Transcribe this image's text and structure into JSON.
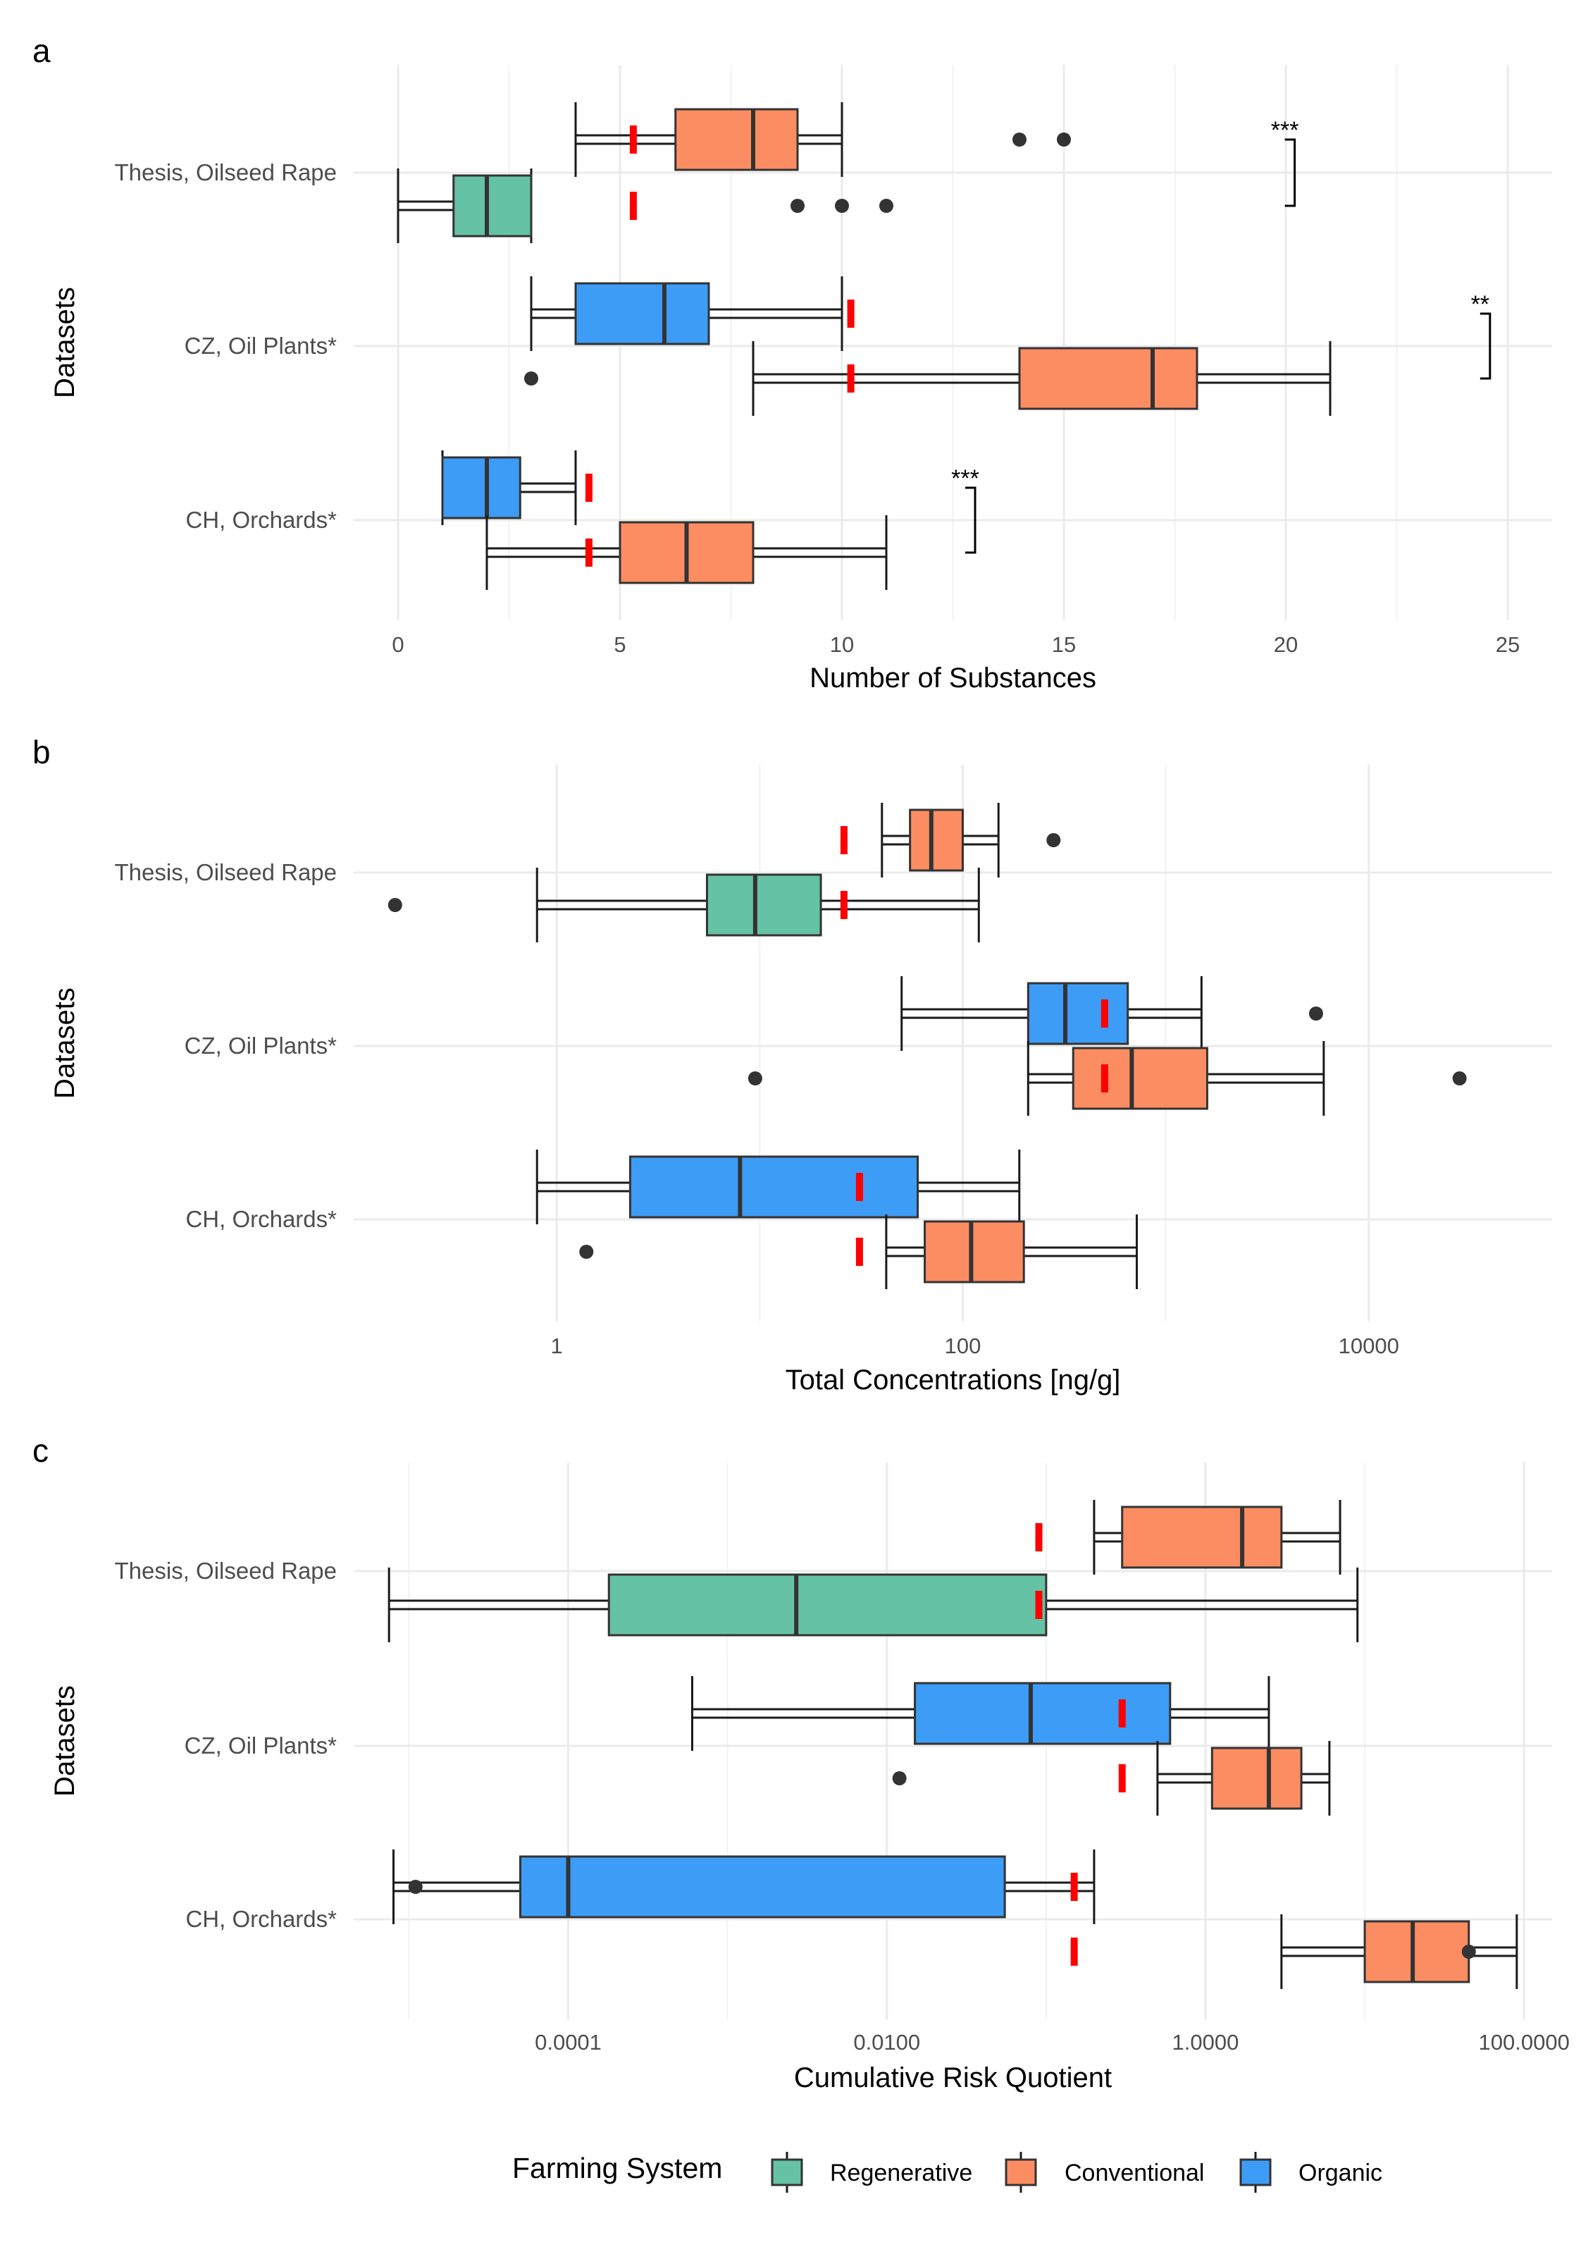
{
  "colors": {
    "Regenerative": "#66c2a5",
    "Conventional": "#fc8d62",
    "Organic": "#3d9cf5",
    "mean_marker": "#ff0000",
    "outlier": "#333333"
  },
  "legend": {
    "title": "Farming System",
    "items": [
      "Regenerative",
      "Conventional",
      "Organic"
    ]
  },
  "chart_data": [
    {
      "panel": "a",
      "type": "boxplot",
      "orientation": "horizontal",
      "xlabel": "Number of Substances",
      "ylabel": "Datasets",
      "xscale": "linear",
      "xlim": [
        -1,
        26
      ],
      "xticks": [
        0,
        5,
        10,
        15,
        20,
        25
      ],
      "xtick_labels": [
        "0",
        "5",
        "10",
        "15",
        "20",
        "25"
      ],
      "categories": [
        "Thesis, Oilseed Rape",
        "CZ, Oil Plants*",
        "CH, Orchards*"
      ],
      "groups": [
        {
          "category": "Thesis, Oilseed Rape",
          "system": "Conventional",
          "min": 4,
          "q1": 6.25,
          "median": 8,
          "q3": 9,
          "max": 10,
          "mean": 5.3,
          "outliers": [
            14,
            15
          ]
        },
        {
          "category": "Thesis, Oilseed Rape",
          "system": "Regenerative",
          "min": 0,
          "q1": 1.25,
          "median": 2,
          "q3": 3,
          "max": 3,
          "mean": 5.3,
          "outliers": [
            9,
            10,
            11
          ]
        },
        {
          "category": "CZ, Oil Plants*",
          "system": "Organic",
          "min": 3,
          "q1": 4,
          "median": 6,
          "q3": 7,
          "max": 10,
          "mean": 10.2,
          "outliers": []
        },
        {
          "category": "CZ, Oil Plants*",
          "system": "Conventional",
          "min": 8,
          "q1": 14,
          "median": 17,
          "q3": 18,
          "max": 21,
          "mean": 10.2,
          "outliers": [
            3
          ]
        },
        {
          "category": "CH, Orchards*",
          "system": "Organic",
          "min": 1,
          "q1": 1,
          "median": 2,
          "q3": 2.75,
          "max": 4,
          "mean": 4.3,
          "outliers": []
        },
        {
          "category": "CH, Orchards*",
          "system": "Conventional",
          "min": 2,
          "q1": 5,
          "median": 6.5,
          "q3": 8,
          "max": 11,
          "mean": 4.3,
          "outliers": []
        }
      ],
      "significance": [
        {
          "category": "Thesis, Oilseed Rape",
          "label": "***",
          "x": 20.2
        },
        {
          "category": "CZ, Oil Plants*",
          "label": "**",
          "x": 24.6
        },
        {
          "category": "CH, Orchards*",
          "label": "***",
          "x": 13
        }
      ]
    },
    {
      "panel": "b",
      "type": "boxplot",
      "orientation": "horizontal",
      "xlabel": "Total Concentrations [ng/g]",
      "ylabel": "Datasets",
      "xscale": "log10",
      "xlim": [
        0.1,
        80000
      ],
      "xticks": [
        1,
        100,
        10000
      ],
      "xtick_labels": [
        "1",
        "100",
        "10000"
      ],
      "categories": [
        "Thesis, Oilseed Rape",
        "CZ, Oil Plants*",
        "CH, Orchards*"
      ],
      "groups": [
        {
          "category": "Thesis, Oilseed Rape",
          "system": "Conventional",
          "min": 40,
          "q1": 55,
          "median": 70,
          "q3": 100,
          "max": 150,
          "mean": 26,
          "outliers": [
            280
          ]
        },
        {
          "category": "Thesis, Oilseed Rape",
          "system": "Regenerative",
          "min": 0.8,
          "q1": 5.5,
          "median": 9.5,
          "q3": 20,
          "max": 120,
          "mean": 26,
          "outliers": [
            0.16
          ]
        },
        {
          "category": "CZ, Oil Plants*",
          "system": "Organic",
          "min": 50,
          "q1": 210,
          "median": 320,
          "q3": 650,
          "max": 1500,
          "mean": 500,
          "outliers": [
            5500
          ]
        },
        {
          "category": "CZ, Oil Plants*",
          "system": "Conventional",
          "min": 210,
          "q1": 350,
          "median": 680,
          "q3": 1600,
          "max": 6000,
          "mean": 500,
          "outliers": [
            9.5,
            28000
          ]
        },
        {
          "category": "CH, Orchards*",
          "system": "Organic",
          "min": 0.8,
          "q1": 2.3,
          "median": 8,
          "q3": 60,
          "max": 190,
          "mean": 31,
          "outliers": []
        },
        {
          "category": "CH, Orchards*",
          "system": "Conventional",
          "min": 42,
          "q1": 65,
          "median": 110,
          "q3": 200,
          "max": 720,
          "mean": 31,
          "outliers": [
            1.4
          ]
        }
      ]
    },
    {
      "panel": "c",
      "type": "boxplot",
      "orientation": "horizontal",
      "xlabel": "Cumulative Risk Quotient",
      "ylabel": "Datasets",
      "xscale": "log10",
      "xlim": [
        4.5e-06,
        150
      ],
      "xticks": [
        0.0001,
        0.01,
        1,
        100
      ],
      "xtick_labels": [
        "0.0001",
        "0.0100",
        "1.0000",
        "100.0000"
      ],
      "categories": [
        "Thesis, Oilseed Rape",
        "CZ, Oil Plants*",
        "CH, Orchards*"
      ],
      "groups": [
        {
          "category": "Thesis, Oilseed Rape",
          "system": "Conventional",
          "min": 0.2,
          "q1": 0.3,
          "median": 1.7,
          "q3": 3,
          "max": 7,
          "mean": 0.09,
          "outliers": []
        },
        {
          "category": "Thesis, Oilseed Rape",
          "system": "Regenerative",
          "min": 7.5e-06,
          "q1": 0.00018,
          "median": 0.0027,
          "q3": 0.1,
          "max": 9,
          "mean": 0.09,
          "outliers": []
        },
        {
          "category": "CZ, Oil Plants*",
          "system": "Organic",
          "min": 0.0006,
          "q1": 0.015,
          "median": 0.08,
          "q3": 0.6,
          "max": 2.5,
          "mean": 0.3,
          "outliers": []
        },
        {
          "category": "CZ, Oil Plants*",
          "system": "Conventional",
          "min": 0.5,
          "q1": 1.1,
          "median": 2.5,
          "q3": 4,
          "max": 6,
          "mean": 0.3,
          "outliers": [
            0.012
          ]
        },
        {
          "category": "CH, Orchards*",
          "system": "Organic",
          "min": 8e-06,
          "q1": 5e-05,
          "median": 0.0001,
          "q3": 0.055,
          "max": 0.2,
          "mean": 0.15,
          "outliers": [
            1.1e-05
          ]
        },
        {
          "category": "CH, Orchards*",
          "system": "Conventional",
          "min": 3,
          "q1": 10,
          "median": 20,
          "q3": 45,
          "max": 90,
          "mean": 0.15,
          "outliers": [
            45
          ]
        }
      ]
    }
  ]
}
